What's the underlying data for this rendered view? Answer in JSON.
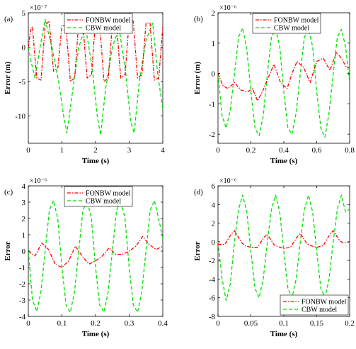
{
  "figure": {
    "panels": [
      {
        "id": "a",
        "label": "(a)"
      },
      {
        "id": "b",
        "label": "(b)"
      },
      {
        "id": "c",
        "label": "(c)"
      },
      {
        "id": "d",
        "label": "(d)"
      }
    ]
  },
  "chart_data": [
    {
      "type": "line",
      "panel": "(a)",
      "xlabel": "Time (s)",
      "ylabel": "Error (m)",
      "exponent": "×10⁻⁷",
      "xlim": [
        0,
        4
      ],
      "ylim": [
        -14,
        5
      ],
      "xticks": [
        0,
        1,
        2,
        3,
        4
      ],
      "yticks": [
        -10,
        -5,
        0,
        5
      ],
      "grid": false,
      "legend_position": "top-center",
      "colors": {
        "fonbw": "#ff0000",
        "cbw": "#00e000"
      },
      "series": [
        {
          "name": "FONBW model",
          "style": "dash-dot",
          "x": [
            0,
            0.07,
            0.12,
            0.25,
            0.38,
            0.5,
            0.62,
            0.75,
            0.88,
            1.0,
            1.12,
            1.25,
            1.38,
            1.5,
            1.62,
            1.75,
            1.88,
            2.0,
            2.12,
            2.25,
            2.38,
            2.5,
            2.62,
            2.75,
            2.88,
            3.0,
            3.12,
            3.25,
            3.38,
            3.5,
            3.62,
            3.75,
            3.88,
            4.0
          ],
          "values": [
            0,
            2.5,
            3.0,
            -4.5,
            -4.8,
            3.2,
            3.8,
            -3.5,
            -3.0,
            3.2,
            3.0,
            -5.0,
            -4.5,
            3.8,
            3.5,
            -4.5,
            -4.0,
            4.0,
            3.5,
            -5.0,
            -4.5,
            3.5,
            3.8,
            -4.5,
            -4.0,
            4.0,
            3.8,
            -4.5,
            -4.0,
            3.5,
            3.5,
            -4.8,
            -4.5,
            3.0
          ]
        },
        {
          "name": "CBW model",
          "style": "dashed",
          "x": [
            0,
            0.1,
            0.2,
            0.35,
            0.5,
            0.7,
            0.9,
            1.05,
            1.15,
            1.3,
            1.5,
            1.7,
            1.9,
            2.05,
            2.15,
            2.3,
            2.5,
            2.7,
            2.9,
            3.05,
            3.15,
            3.3,
            3.5,
            3.7,
            3.85,
            4.0
          ],
          "values": [
            0,
            -2.5,
            -4.5,
            0,
            4.0,
            0,
            -5,
            -10,
            -12.5,
            -7,
            0,
            3.0,
            -3,
            -10,
            -12.8,
            -6,
            0,
            2.8,
            -4,
            -11,
            -12.5,
            -5,
            1.0,
            3.5,
            -4,
            -9.0
          ]
        }
      ]
    },
    {
      "type": "line",
      "panel": "(b)",
      "xlabel": "Time (s)",
      "ylabel": "Error (m)",
      "exponent": "×10⁻⁶",
      "xlim": [
        0,
        0.8
      ],
      "ylim": [
        -2.3,
        2.0
      ],
      "xticks": [
        0,
        0.2,
        0.4,
        0.6,
        0.8
      ],
      "yticks": [
        -2,
        -1,
        0,
        1,
        2
      ],
      "grid": false,
      "legend_position": "top-center",
      "colors": {
        "fonbw": "#ff0000",
        "cbw": "#00e000"
      },
      "series": [
        {
          "name": "FONBW model",
          "style": "dash-dot",
          "x": [
            0,
            0.03,
            0.06,
            0.1,
            0.14,
            0.18,
            0.21,
            0.24,
            0.27,
            0.3,
            0.34,
            0.38,
            0.42,
            0.45,
            0.48,
            0.52,
            0.56,
            0.6,
            0.64,
            0.68,
            0.72,
            0.75,
            0.78,
            0.8
          ],
          "values": [
            0,
            -0.4,
            -0.5,
            -0.3,
            -0.55,
            -0.6,
            -0.5,
            -0.9,
            -0.6,
            -0.2,
            0.3,
            -0.3,
            -0.5,
            0,
            0.4,
            0.2,
            -0.3,
            0.4,
            0.5,
            0.1,
            0.7,
            0.5,
            0.2,
            0.2
          ]
        },
        {
          "name": "CBW model",
          "style": "dashed",
          "x": [
            0,
            0.025,
            0.05,
            0.075,
            0.1,
            0.125,
            0.15,
            0.175,
            0.2,
            0.225,
            0.25,
            0.275,
            0.3,
            0.325,
            0.35,
            0.375,
            0.4,
            0.425,
            0.45,
            0.475,
            0.5,
            0.525,
            0.55,
            0.575,
            0.6,
            0.625,
            0.65,
            0.675,
            0.7,
            0.725,
            0.75,
            0.775,
            0.8
          ],
          "values": [
            0,
            -1.4,
            -1.8,
            -1.2,
            0,
            1.2,
            1.5,
            0.8,
            -0.6,
            -1.8,
            -2.05,
            -1.4,
            0,
            1.2,
            1.45,
            0.9,
            -0.6,
            -1.8,
            -2.0,
            -1.3,
            0,
            1.2,
            1.45,
            0.9,
            -0.6,
            -1.8,
            -2.1,
            -1.3,
            0,
            1.2,
            1.45,
            0.9,
            -0.3
          ]
        }
      ]
    },
    {
      "type": "line",
      "panel": "(c)",
      "xlabel": "Time (s)",
      "ylabel": "Error",
      "exponent": "×10⁻⁶",
      "xlim": [
        0,
        0.4
      ],
      "ylim": [
        -4,
        4
      ],
      "xticks": [
        0,
        0.1,
        0.2,
        0.3,
        0.4
      ],
      "yticks": [
        -4,
        -3,
        -2,
        -1,
        0,
        1,
        2,
        3,
        4
      ],
      "grid": false,
      "legend_position": "top-center",
      "colors": {
        "fonbw": "#ff0000",
        "cbw": "#00e000"
      },
      "series": [
        {
          "name": "FONBW model",
          "style": "dash-dot",
          "x": [
            0,
            0.02,
            0.04,
            0.06,
            0.08,
            0.1,
            0.12,
            0.14,
            0.16,
            0.18,
            0.2,
            0.22,
            0.24,
            0.26,
            0.28,
            0.3,
            0.32,
            0.34,
            0.36,
            0.38,
            0.4
          ],
          "values": [
            0,
            -0.3,
            0.5,
            0.1,
            -0.8,
            -1.0,
            -0.6,
            0.3,
            -0.3,
            -0.8,
            -0.6,
            -0.3,
            0.2,
            -0.2,
            -0.2,
            0.0,
            0.3,
            0.9,
            0.4,
            0.1,
            0.3
          ]
        },
        {
          "name": "CBW model",
          "style": "dashed",
          "x": [
            0,
            0.0125,
            0.025,
            0.0375,
            0.05,
            0.0625,
            0.075,
            0.0875,
            0.1,
            0.1125,
            0.125,
            0.1375,
            0.15,
            0.1625,
            0.175,
            0.1875,
            0.2,
            0.2125,
            0.225,
            0.2375,
            0.25,
            0.2625,
            0.275,
            0.2875,
            0.3,
            0.3125,
            0.325,
            0.3375,
            0.35,
            0.3625,
            0.375,
            0.3875,
            0.4
          ],
          "values": [
            0,
            -3.0,
            -3.7,
            -2.5,
            0,
            2.5,
            3.1,
            2.0,
            -1.0,
            -3.3,
            -3.75,
            -2.5,
            0,
            2.5,
            3.1,
            2.0,
            -1.0,
            -3.3,
            -3.75,
            -2.5,
            0,
            2.5,
            3.1,
            2.0,
            -1.0,
            -3.3,
            -3.75,
            -2.5,
            0,
            2.5,
            3.1,
            2.0,
            0.8
          ]
        }
      ]
    },
    {
      "type": "line",
      "panel": "(d)",
      "xlabel": "Time (s)",
      "ylabel": "Error",
      "exponent": "×10⁻⁶",
      "xlim": [
        0,
        0.2
      ],
      "ylim": [
        -8,
        6
      ],
      "xticks": [
        0,
        0.05,
        0.1,
        0.15,
        0.2
      ],
      "yticks": [
        -8,
        -6,
        -4,
        -2,
        0,
        2,
        4,
        6
      ],
      "grid": false,
      "legend_position": "bottom-right",
      "colors": {
        "fonbw": "#ff0000",
        "cbw": "#00e000"
      },
      "series": [
        {
          "name": "FONBW model",
          "style": "dash-dot",
          "x": [
            0,
            0.01,
            0.02,
            0.025,
            0.035,
            0.04,
            0.05,
            0.06,
            0.07,
            0.075,
            0.085,
            0.09,
            0.1,
            0.11,
            0.12,
            0.125,
            0.135,
            0.14,
            0.15,
            0.16,
            0.17,
            0.175,
            0.185,
            0.19,
            0.2
          ],
          "values": [
            -0.3,
            -0.3,
            0.8,
            1.2,
            0.0,
            -0.4,
            -0.6,
            -0.6,
            0.5,
            0.8,
            -0.3,
            -0.5,
            -0.7,
            -0.6,
            0.5,
            0.9,
            -0.2,
            -0.4,
            -0.6,
            -0.4,
            0.8,
            1.2,
            0.1,
            -0.1,
            0.0
          ]
        },
        {
          "name": "CBW model",
          "style": "dashed",
          "x": [
            0,
            0.00625,
            0.0125,
            0.01875,
            0.025,
            0.03125,
            0.0375,
            0.04375,
            0.05,
            0.05625,
            0.0625,
            0.06875,
            0.075,
            0.08125,
            0.0875,
            0.09375,
            0.1,
            0.10625,
            0.1125,
            0.11875,
            0.125,
            0.13125,
            0.1375,
            0.14375,
            0.15,
            0.15625,
            0.1625,
            0.16875,
            0.175,
            0.18125,
            0.1875,
            0.19375,
            0.2
          ],
          "values": [
            0,
            -4.0,
            -6.3,
            -4.5,
            0,
            3.5,
            5.0,
            3.2,
            -1.0,
            -5.0,
            -6.0,
            -4.0,
            0,
            3.5,
            5.0,
            3.2,
            -1.0,
            -5.0,
            -6.0,
            -4.0,
            0,
            3.5,
            5.0,
            3.2,
            -1.0,
            -5.0,
            -6.0,
            -4.0,
            0,
            3.5,
            5.0,
            3.2,
            3.5
          ]
        }
      ]
    }
  ]
}
